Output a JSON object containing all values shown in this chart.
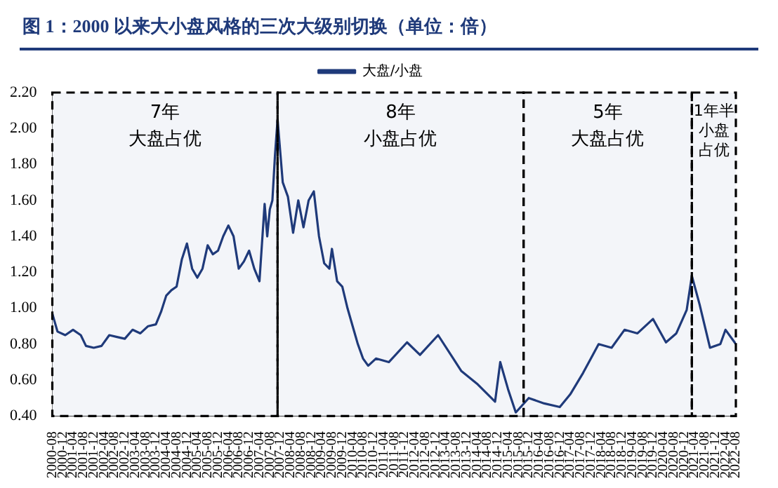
{
  "chart_data": {
    "type": "line",
    "title": "图 1：2000 以来大小盘风格的三次大级别切换（单位：倍）",
    "x": [
      "2000-08",
      "2000-10",
      "2001-01",
      "2001-04",
      "2001-07",
      "2001-09",
      "2001-12",
      "2002-03",
      "2002-06",
      "2002-09",
      "2002-12",
      "2003-03",
      "2003-06",
      "2003-09",
      "2003-12",
      "2004-02",
      "2004-04",
      "2004-06",
      "2004-08",
      "2004-10",
      "2004-12",
      "2005-02",
      "2005-04",
      "2005-06",
      "2005-08",
      "2005-10",
      "2005-12",
      "2006-02",
      "2006-04",
      "2006-06",
      "2006-08",
      "2006-10",
      "2006-12",
      "2007-02",
      "2007-04",
      "2007-06",
      "2007-07",
      "2007-08",
      "2007-09",
      "2007-10",
      "2007-11",
      "2008-01",
      "2008-03",
      "2008-05",
      "2008-07",
      "2008-09",
      "2008-11",
      "2009-01",
      "2009-03",
      "2009-05",
      "2009-07",
      "2009-08",
      "2009-10",
      "2009-12",
      "2010-02",
      "2010-04",
      "2010-06",
      "2010-08",
      "2010-10",
      "2011-01",
      "2011-06",
      "2012-01",
      "2012-06",
      "2013-01",
      "2013-10",
      "2014-04",
      "2014-11",
      "2015-01",
      "2015-04",
      "2015-07",
      "2015-12",
      "2016-06",
      "2016-12",
      "2017-04",
      "2017-09",
      "2018-03",
      "2018-08",
      "2019-01",
      "2019-06",
      "2019-12",
      "2020-05",
      "2020-09",
      "2021-01",
      "2021-03",
      "2021-06",
      "2021-10",
      "2022-02",
      "2022-04",
      "2022-08"
    ],
    "series": [
      {
        "name": "大盘/小盘",
        "color": "#1f3a7a",
        "values": [
          0.97,
          0.87,
          0.85,
          0.88,
          0.85,
          0.79,
          0.78,
          0.79,
          0.85,
          0.84,
          0.83,
          0.88,
          0.86,
          0.9,
          0.91,
          0.98,
          1.07,
          1.1,
          1.12,
          1.27,
          1.36,
          1.22,
          1.17,
          1.22,
          1.35,
          1.3,
          1.32,
          1.4,
          1.46,
          1.4,
          1.22,
          1.26,
          1.32,
          1.22,
          1.15,
          1.58,
          1.4,
          1.55,
          1.6,
          1.85,
          2.05,
          1.7,
          1.62,
          1.42,
          1.6,
          1.45,
          1.6,
          1.65,
          1.4,
          1.25,
          1.22,
          1.33,
          1.15,
          1.12,
          1.0,
          0.9,
          0.8,
          0.72,
          0.68,
          0.72,
          0.7,
          0.81,
          0.74,
          0.85,
          0.65,
          0.58,
          0.48,
          0.7,
          0.55,
          0.42,
          0.5,
          0.47,
          0.45,
          0.52,
          0.64,
          0.8,
          0.78,
          0.88,
          0.86,
          0.94,
          0.81,
          0.86,
          0.99,
          1.18,
          1.02,
          0.78,
          0.8,
          0.88,
          0.8
        ]
      }
    ],
    "xlim": [
      "2000-08",
      "2022-08"
    ],
    "xticks": [
      "2000-08",
      "2000-12",
      "2001-04",
      "2001-08",
      "2001-12",
      "2002-04",
      "2002-08",
      "2002-12",
      "2003-04",
      "2003-08",
      "2003-12",
      "2004-04",
      "2004-08",
      "2004-12",
      "2005-04",
      "2005-08",
      "2005-12",
      "2006-04",
      "2006-08",
      "2006-12",
      "2007-04",
      "2007-08",
      "2007-12",
      "2008-04",
      "2008-08",
      "2008-12",
      "2009-04",
      "2009-08",
      "2009-12",
      "2010-04",
      "2010-08",
      "2010-12",
      "2011-04",
      "2011-08",
      "2011-12",
      "2012-04",
      "2012-08",
      "2012-12",
      "2013-04",
      "2013-08",
      "2013-12",
      "2014-04",
      "2014-08",
      "2014-12",
      "2015-04",
      "2015-08",
      "2015-12",
      "2016-04",
      "2016-08",
      "2016-12",
      "2017-04",
      "2017-08",
      "2017-12",
      "2018-04",
      "2018-08",
      "2018-12",
      "2019-04",
      "2019-08",
      "2019-12",
      "2020-04",
      "2020-08",
      "2020-12",
      "2021-04",
      "2021-08",
      "2021-12",
      "2022-04",
      "2022-08"
    ],
    "ylim": [
      0.4,
      2.2
    ],
    "yticks": [
      {
        "value": 0.4,
        "label": "0.40"
      },
      {
        "value": 0.6,
        "label": "0.60"
      },
      {
        "value": 0.8,
        "label": "0.80"
      },
      {
        "value": 1.0,
        "label": "1.00"
      },
      {
        "value": 1.2,
        "label": "1.20"
      },
      {
        "value": 1.4,
        "label": "1.40"
      },
      {
        "value": 1.6,
        "label": "1.60"
      },
      {
        "value": 1.8,
        "label": "1.80"
      },
      {
        "value": 2.0,
        "label": "2.00"
      },
      {
        "value": 2.2,
        "label": "2.20"
      }
    ],
    "bands": [
      {
        "axis": "x",
        "from": "2000-08",
        "to": "2007-11",
        "label": "7年大盘占优",
        "color": "#f3f5f9"
      },
      {
        "axis": "x",
        "from": "2007-11",
        "to": "2015-10",
        "label": "8年小盘占优",
        "color": "#f3f5f9"
      },
      {
        "axis": "x",
        "from": "2015-10",
        "to": "2021-03",
        "label": "5年大盘占优",
        "color": "#f3f5f9"
      },
      {
        "axis": "x",
        "from": "2021-03",
        "to": "2022-08",
        "label": "1年半小盘占优",
        "color": "#f3f5f9"
      }
    ],
    "grid": false,
    "legend": "top",
    "marker": "none",
    "line_style": "solid"
  }
}
